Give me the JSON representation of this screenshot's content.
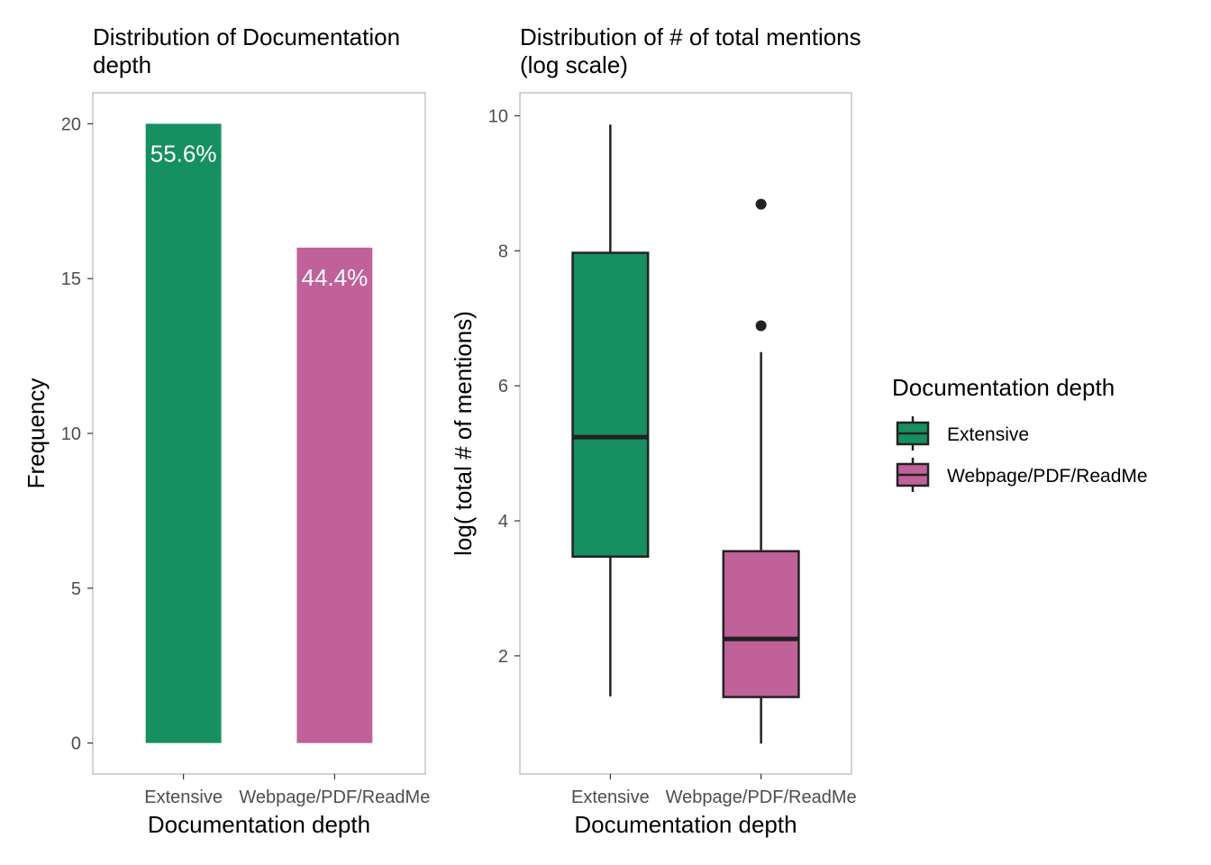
{
  "chart_data": [
    {
      "type": "bar",
      "title_lines": [
        "Distribution of Documentation",
        "depth"
      ],
      "xlabel": "Documentation depth",
      "ylabel": "Frequency",
      "categories": [
        "Extensive",
        "Webpage/PDF/ReadMe"
      ],
      "values": [
        20,
        16
      ],
      "data_labels": [
        "55.6%",
        "44.4%"
      ],
      "colors": [
        "#168F61",
        "#C06199"
      ],
      "ylim": [
        -1,
        21
      ],
      "yticks": [
        0,
        5,
        10,
        15,
        20
      ],
      "ytick_labels": [
        "0",
        "5",
        "10",
        "15",
        "20"
      ],
      "grid": false
    },
    {
      "type": "box",
      "title_lines": [
        "Distribution of # of total mentions",
        "(log scale)"
      ],
      "xlabel": "Documentation depth",
      "ylabel": "log( total # of mentions)",
      "categories": [
        "Extensive",
        "Webpage/PDF/ReadMe"
      ],
      "boxes": [
        {
          "min": 1.4,
          "q1": 3.47,
          "median": 5.24,
          "q3": 7.97,
          "max": 9.87,
          "outliers": []
        },
        {
          "min": 0.7,
          "q1": 1.39,
          "median": 2.25,
          "q3": 3.55,
          "max": 6.5,
          "outliers": [
            6.89,
            8.69
          ]
        }
      ],
      "colors": [
        "#168F61",
        "#C06199"
      ],
      "ylim": [
        0.25,
        10.34
      ],
      "yticks": [
        2,
        4,
        6,
        8,
        10
      ],
      "ytick_labels": [
        "2",
        "4",
        "6",
        "8",
        "10"
      ],
      "grid": false
    }
  ],
  "legend": {
    "title": "Documentation depth",
    "position": "right",
    "items": [
      {
        "label": "Extensive",
        "color": "#168F61"
      },
      {
        "label": "Webpage/PDF/ReadMe",
        "color": "#C06199"
      }
    ]
  }
}
